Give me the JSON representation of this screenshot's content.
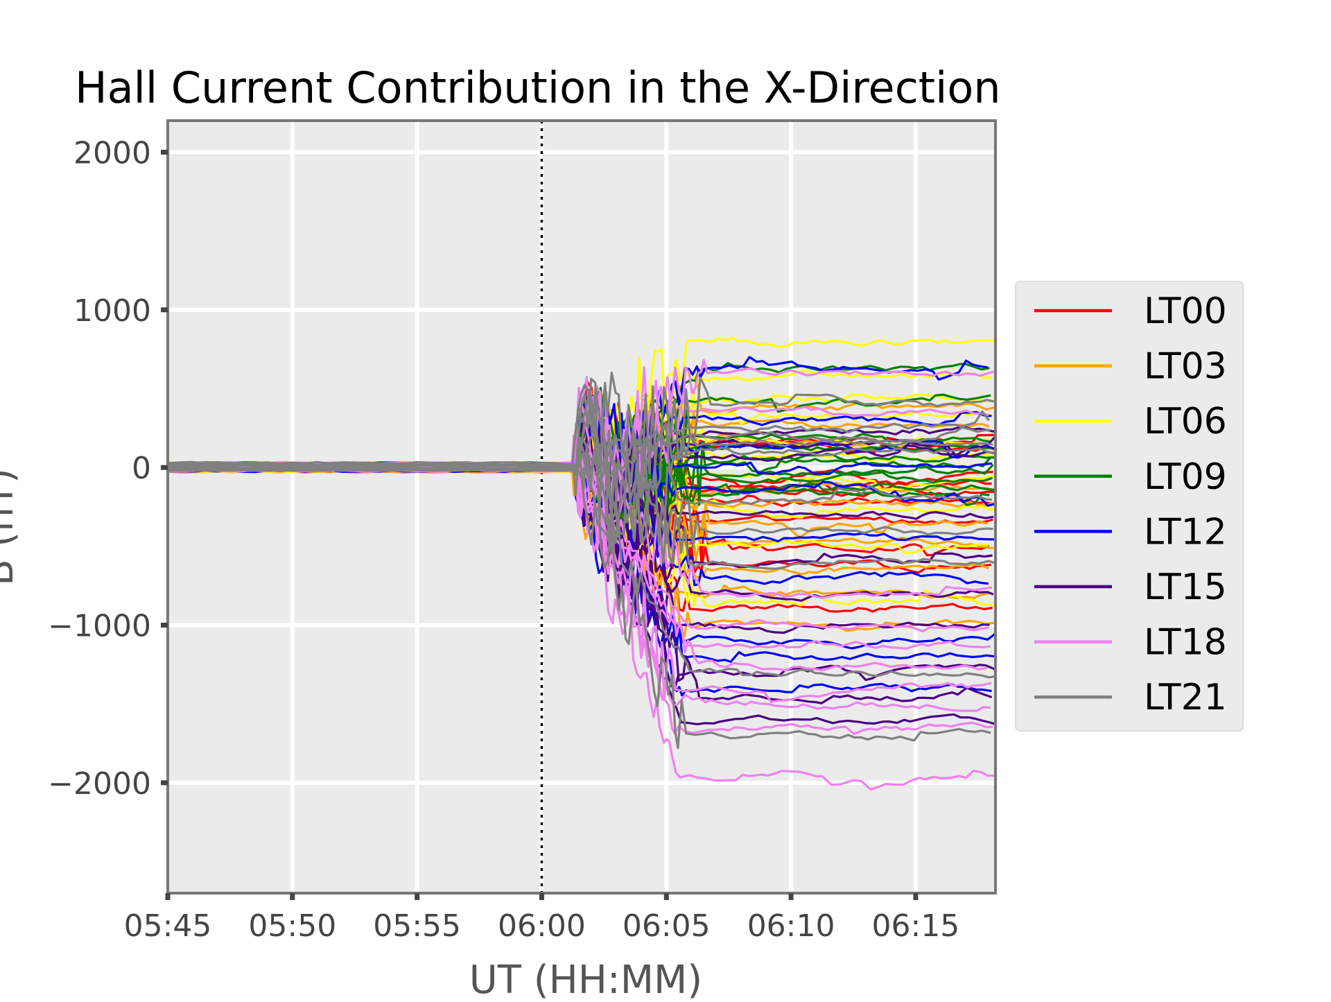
{
  "chart_data": {
    "type": "line",
    "title": "Hall Current Contribution in the X-Direction",
    "xlabel": "UT (HH:MM)",
    "ylabel": "B (nT)",
    "x_unit": "minutes after 05:45 UT",
    "xlim": [
      0,
      33.2
    ],
    "ylim": [
      -2700,
      2200
    ],
    "x_ticks": [
      0,
      5,
      10,
      15,
      20,
      25,
      30
    ],
    "x_tick_labels": [
      "05:45",
      "05:50",
      "05:55",
      "06:00",
      "06:05",
      "06:10",
      "06:15"
    ],
    "y_ticks": [
      -2000,
      -1000,
      0,
      1000,
      2000
    ],
    "y_tick_labels": [
      "−2000",
      "−1000",
      "0",
      "1000",
      "2000"
    ],
    "grid": true,
    "legend_position": "right",
    "vline": {
      "x": 15,
      "style": "dotted",
      "color": "#000000"
    },
    "series": [
      {
        "name": "LT00",
        "color": "#ff0000",
        "levels": [
          -900,
          -620,
          -480,
          -330,
          -210,
          -150,
          -100,
          -60,
          120,
          180
        ],
        "onset": 2
      },
      {
        "name": "LT03",
        "color": "#ffa500",
        "levels": [
          -1000,
          -800,
          -650,
          -480,
          -340,
          -220,
          -130,
          150,
          280,
          380
        ],
        "onset": 2
      },
      {
        "name": "LT06",
        "color": "#ffff00",
        "levels": [
          -850,
          -500,
          -250,
          -60,
          80,
          180,
          330,
          430,
          580,
          800
        ],
        "onset": 1
      },
      {
        "name": "LT09",
        "color": "#008000",
        "levels": [
          -180,
          -120,
          -70,
          -30,
          20,
          60,
          120,
          200,
          420,
          620
        ],
        "onset": 0
      },
      {
        "name": "LT12",
        "color": "#0000ff",
        "levels": [
          -1400,
          -1200,
          -1100,
          -700,
          -450,
          -150,
          20,
          120,
          300,
          620
        ],
        "onset": 3
      },
      {
        "name": "LT15",
        "color": "#4b0082",
        "levels": [
          -1600,
          -1450,
          -1300,
          -1000,
          -800,
          -600,
          -300,
          80,
          150,
          240
        ],
        "onset": 2
      },
      {
        "name": "LT18",
        "color": "#ee82ee",
        "levels": [
          -1950,
          -1650,
          -1500,
          -1400,
          -1250,
          -1120,
          -1000,
          -800,
          350,
          600
        ],
        "onset": 1
      },
      {
        "name": "LT21",
        "color": "#808080",
        "levels": [
          -1700,
          -1300,
          -600,
          -400,
          -200,
          100,
          150,
          200,
          250,
          400
        ],
        "onset": 0
      }
    ]
  }
}
